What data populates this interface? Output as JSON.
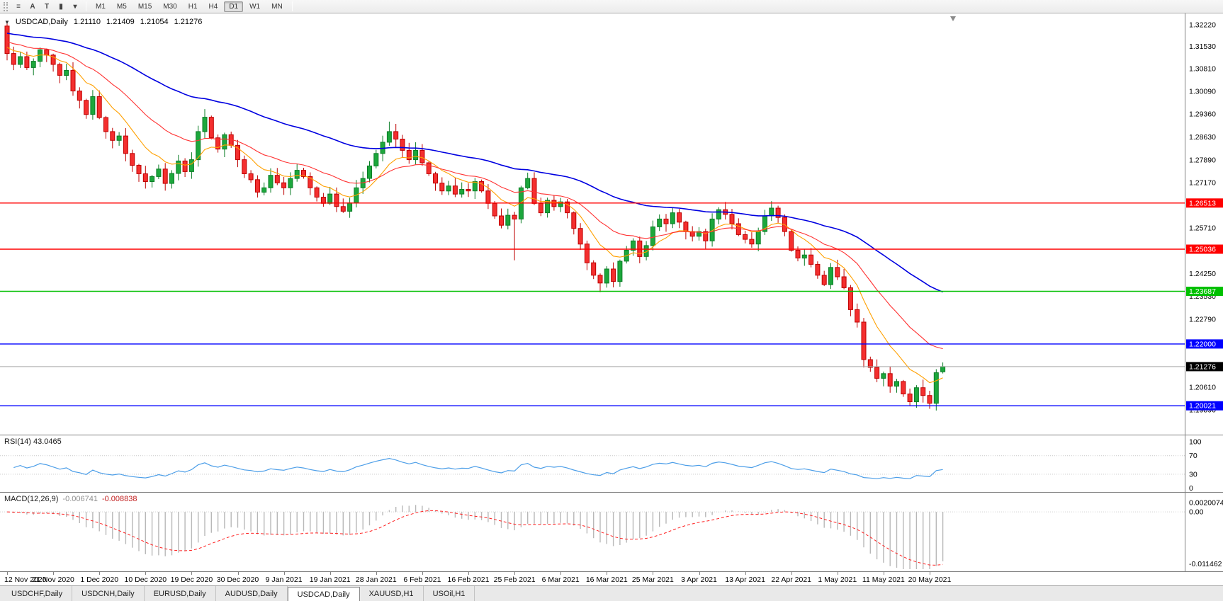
{
  "window": {
    "symbol": "USDCAD,Daily",
    "open": "1.21110",
    "high": "1.21409",
    "low": "1.21054",
    "close": "1.21276"
  },
  "icons": {
    "collapse_arrow": "▼"
  },
  "toolbar": {
    "icons": [
      {
        "name": "menu-icon",
        "glyph": "≡"
      },
      {
        "name": "cursor-tool-icon",
        "glyph": "A"
      },
      {
        "name": "text-tool-icon",
        "glyph": "T"
      },
      {
        "name": "chart-type-icon",
        "glyph": "▮"
      },
      {
        "name": "tool-dropdown-icon",
        "glyph": "▾"
      }
    ],
    "timeframes": [
      "M1",
      "M5",
      "M15",
      "M30",
      "H1",
      "H4",
      "D1",
      "W1",
      "MN"
    ],
    "active_timeframe": "D1"
  },
  "chart_data": {
    "type": "candlestick",
    "symbol": "USDCAD",
    "timeframe": "Daily",
    "label_every": 7,
    "x_labels": [
      "12 Nov 2020",
      "21 Nov 2020",
      "1 Dec 2020",
      "10 Dec 2020",
      "19 Dec 2020",
      "30 Dec 2020",
      "9 Jan 2021",
      "19 Jan 2021",
      "28 Jan 2021",
      "6 Feb 2021",
      "16 Feb 2021",
      "25 Feb 2021",
      "6 Mar 2021",
      "16 Mar 2021",
      "25 Mar 2021",
      "3 Apr 2021",
      "13 Apr 2021",
      "22 Apr 2021",
      "1 May 2021",
      "11 May 2021",
      "20 May 2021"
    ],
    "candles_close": [
      1.313,
      1.3095,
      1.312,
      1.3085,
      1.3105,
      1.3142,
      1.3125,
      1.3095,
      1.306,
      1.3076,
      1.301,
      1.298,
      1.2935,
      1.2992,
      1.2925,
      1.288,
      1.2852,
      1.2866,
      1.281,
      1.2772,
      1.2745,
      1.272,
      1.2736,
      1.276,
      1.2714,
      1.2746,
      1.2786,
      1.2752,
      1.279,
      1.288,
      1.2926,
      1.286,
      1.2824,
      1.287,
      1.2836,
      1.279,
      1.2745,
      1.2726,
      1.2686,
      1.27,
      1.274,
      1.2716,
      1.27,
      1.273,
      1.2756,
      1.2736,
      1.27,
      1.267,
      1.265,
      1.268,
      1.264,
      1.2625,
      1.2652,
      1.27,
      1.273,
      1.277,
      1.281,
      1.2846,
      1.288,
      1.2856,
      1.282,
      1.279,
      1.282,
      1.278,
      1.2745,
      1.2715,
      1.269,
      1.2706,
      1.268,
      1.2695,
      1.269,
      1.272,
      1.269,
      1.265,
      1.261,
      1.258,
      1.2612,
      1.26,
      1.27,
      1.273,
      1.265,
      1.262,
      1.266,
      1.264,
      1.2655,
      1.262,
      1.257,
      1.252,
      1.246,
      1.242,
      1.2395,
      1.244,
      1.24,
      1.2465,
      1.25,
      1.253,
      1.248,
      1.2515,
      1.2575,
      1.26,
      1.2585,
      1.262,
      1.259,
      1.256,
      1.2545,
      1.256,
      1.253,
      1.26,
      1.263,
      1.2615,
      1.2585,
      1.255,
      1.2535,
      1.252,
      1.256,
      1.261,
      1.2635,
      1.2605,
      1.256,
      1.25,
      1.2475,
      1.2485,
      1.2455,
      1.242,
      1.239,
      1.2445,
      1.2415,
      1.238,
      1.231,
      1.227,
      1.215,
      1.2125,
      1.209,
      1.2105,
      1.2065,
      1.208,
      1.204,
      1.2015,
      1.206,
      1.2035,
      1.201,
      1.2108,
      1.21276
    ],
    "candle_overrides": {
      "0": {
        "o": 1.3218,
        "h": 1.3226
      },
      "30": {
        "h": 1.2952
      },
      "58": {
        "h": 1.2912
      },
      "77": {
        "l": 1.2468
      },
      "90": {
        "l": 1.2366
      },
      "137": {
        "l": 1.2002
      },
      "142": {
        "o": 1.2111,
        "h": 1.21409,
        "l": 1.21054
      }
    },
    "y_axis_labels": [
      "1.32220",
      "1.31530",
      "1.30810",
      "1.30090",
      "1.29360",
      "1.28630",
      "1.27890",
      "1.27170",
      "1.25710",
      "1.24250",
      "1.23530",
      "1.22790",
      "1.20610",
      "1.19890"
    ],
    "horizontal_lines": [
      {
        "price": 1.26513,
        "label": "1.26513",
        "color": "#FF0000"
      },
      {
        "price": 1.25036,
        "label": "1.25036",
        "color": "#FF0000"
      },
      {
        "price": 1.23687,
        "label": "1.23687",
        "color": "#00C000"
      },
      {
        "price": 1.22,
        "label": "1.22000",
        "color": "#0000FF"
      },
      {
        "price": 1.20021,
        "label": "1.20021",
        "color": "#0000FF"
      }
    ],
    "current_price": "1.21276",
    "rsi": {
      "label": "RSI(14)",
      "value": "43.0465",
      "levels": [
        "100",
        "70",
        "30",
        "0"
      ]
    },
    "macd": {
      "label": "MACD(12,26,9)",
      "main_value": "-0.006741",
      "signal_value": "-0.008838",
      "axis_labels": [
        "0.0020074",
        "0.00",
        "-0.011462"
      ]
    }
  },
  "tabs": {
    "items": [
      "USDCHF,Daily",
      "USDCNH,Daily",
      "EURUSD,Daily",
      "AUDUSD,Daily",
      "USDCAD,Daily",
      "XAUUSD,H1",
      "USOil,H1"
    ],
    "active_index": 4
  },
  "colors": {
    "candle_up": "#1CA73C",
    "candle_up_border": "#0B7D26",
    "candle_down": "#F42F2F",
    "candle_down_border": "#BE0000",
    "ma_fast": "#FFA000",
    "ma_mid": "#FF3232",
    "ma_slow": "#0000E0",
    "rsi_line": "#4C9EE8",
    "macd_hist": "#B8B8B8",
    "macd_signal": "#FF2020",
    "price_label_bg": "#000000",
    "current_price_line": "#A6A6A6"
  }
}
